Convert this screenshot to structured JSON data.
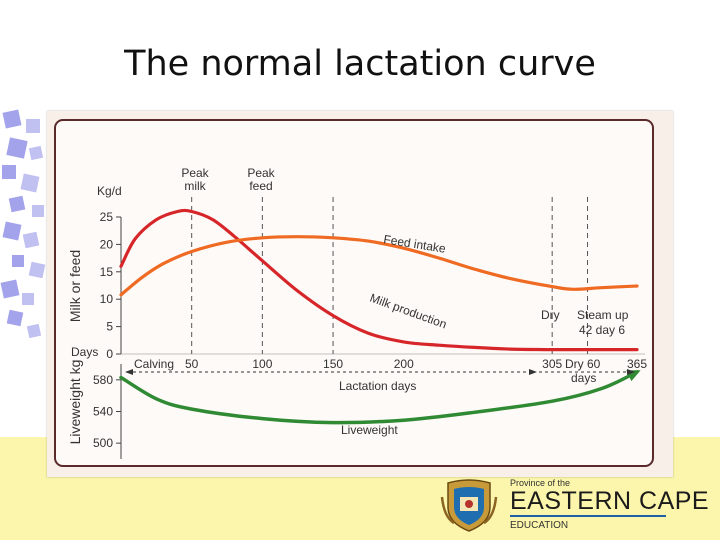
{
  "slide": {
    "title": "The normal lactation curve"
  },
  "logo": {
    "province_line": "Province of the",
    "name": "EASTERN CAPE",
    "department": "EDUCATION"
  },
  "colors": {
    "milk": "#d7262a",
    "feed": "#ef6a22",
    "liveweight": "#2f8a33",
    "footer": "#fbf6ab",
    "deco_blue": "#8c8ce6"
  },
  "chart_data": {
    "type": "line",
    "xlabel": "Lactation days",
    "x_ticks": [
      50,
      100,
      150,
      200,
      305,
      365
    ],
    "x_tick_labels": [
      "50",
      "100",
      "150",
      "200",
      "305",
      "365"
    ],
    "upper_panel": {
      "ylabel": "Milk or feed",
      "unit": "Kg/d",
      "ylim": [
        0,
        25
      ],
      "y_ticks": [
        0,
        5,
        10,
        15,
        20,
        25
      ],
      "series": [
        {
          "name": "Milk production",
          "color": "#d7262a",
          "x": [
            0,
            10,
            25,
            40,
            50,
            65,
            80,
            100,
            125,
            150,
            175,
            200,
            225,
            250,
            275,
            300,
            305,
            330,
            365
          ],
          "y": [
            16,
            21,
            24.5,
            26,
            26,
            24.5,
            21.5,
            17,
            11.5,
            7,
            3.8,
            2.2,
            1.6,
            1.2,
            0.9,
            0.8,
            0.8,
            0.8,
            0.8
          ]
        },
        {
          "name": "Feed intake",
          "color": "#ef6a22",
          "x": [
            0,
            15,
            30,
            50,
            75,
            100,
            125,
            150,
            175,
            200,
            225,
            250,
            275,
            305,
            320,
            340,
            365
          ],
          "y": [
            10.8,
            14,
            16.5,
            18.7,
            20.4,
            21.2,
            21.4,
            21.2,
            20.6,
            19.3,
            17.5,
            15.5,
            13.8,
            12.3,
            11.8,
            12.1,
            12.4
          ]
        }
      ],
      "markers": [
        {
          "label": "Peak milk",
          "x": 50
        },
        {
          "label": "Peak feed",
          "x": 100
        },
        {
          "label": "",
          "x": 150
        },
        {
          "label": "",
          "x": 305
        },
        {
          "label": "",
          "x": 330
        }
      ],
      "annotations": {
        "feed_intake": "Feed intake",
        "milk_production": "Milk production",
        "dry": "Dry",
        "steam_up": "Steam up",
        "steam_days": "42 day 6"
      }
    },
    "lower_panel": {
      "ylabel": "Liveweight kg",
      "row_label": "Days",
      "ylim": [
        480,
        600
      ],
      "y_ticks": [
        500,
        540,
        580
      ],
      "series": [
        {
          "name": "Liveweight",
          "color": "#2f8a33",
          "x": [
            0,
            25,
            50,
            100,
            150,
            200,
            250,
            305,
            340,
            365
          ],
          "y": [
            583,
            556,
            543,
            531,
            526,
            529,
            539,
            553,
            569,
            590
          ]
        }
      ],
      "annotations": {
        "calving": "Calving",
        "dry_period": "Dry 60",
        "dry_period_unit": "days",
        "liveweight": "Liveweight"
      }
    }
  }
}
